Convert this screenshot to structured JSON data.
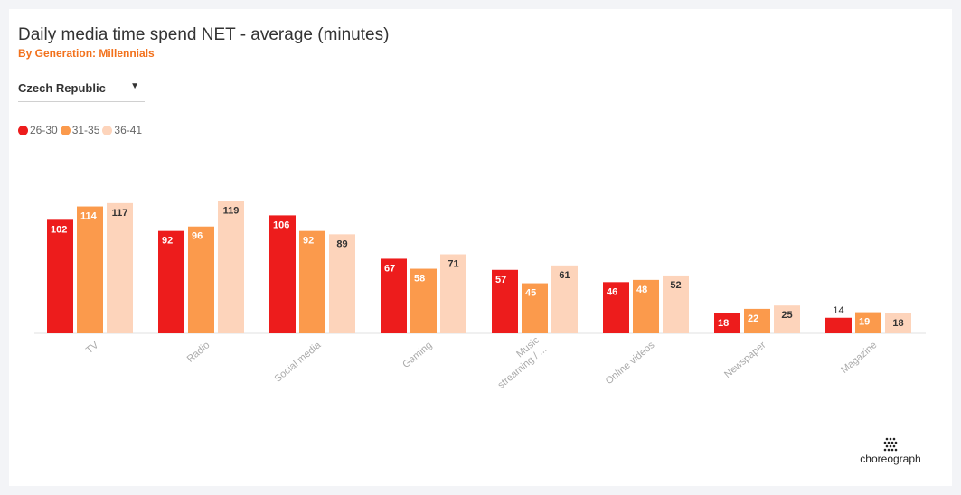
{
  "header": {
    "title": "Daily media time spend NET - average (minutes)",
    "subtitle": "By Generation: Millennials"
  },
  "filter": {
    "selected": "Czech Republic"
  },
  "colors": {
    "accent": "#f2711c",
    "series": [
      "#ed1c1c",
      "#fb9a4c",
      "#fdd4bb"
    ]
  },
  "chart_data": {
    "type": "bar",
    "categories": [
      "TV",
      "Radio",
      "Social media",
      "Gaming",
      "Music streaming / ...",
      "Online videos",
      "Newspaper",
      "Magazine"
    ],
    "category_tick_lines": [
      [
        "TV"
      ],
      [
        "Radio"
      ],
      [
        "Social media"
      ],
      [
        "Gaming"
      ],
      [
        "Music",
        "streaming / ..."
      ],
      [
        "Online videos"
      ],
      [
        "Newspaper"
      ],
      [
        "Magazine"
      ]
    ],
    "series": [
      {
        "name": "26-30",
        "values": [
          102,
          92,
          106,
          67,
          57,
          46,
          18,
          14
        ]
      },
      {
        "name": "31-35",
        "values": [
          114,
          96,
          92,
          58,
          45,
          48,
          22,
          19
        ]
      },
      {
        "name": "36-41",
        "values": [
          117,
          119,
          89,
          71,
          61,
          52,
          25,
          18
        ]
      }
    ],
    "ylim": [
      0,
      125
    ],
    "grid": false,
    "legend_position": "top-left",
    "data_labels": true,
    "xlabel": "",
    "ylabel": ""
  },
  "brand": {
    "logo_text": "choreograph",
    "logo_icon": "choreograph-logo-icon"
  }
}
